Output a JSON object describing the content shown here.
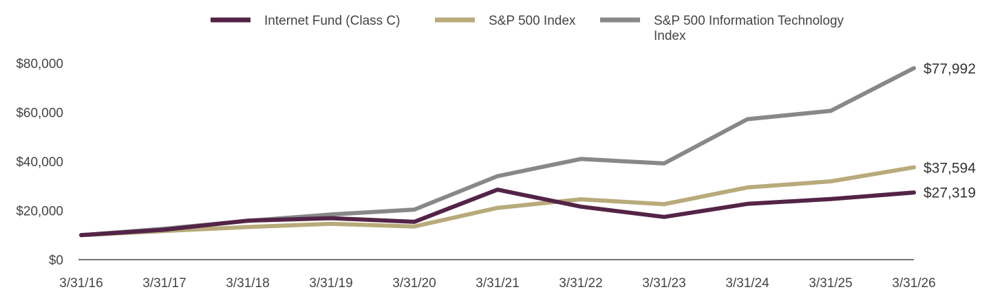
{
  "chart_data": {
    "type": "line",
    "title": "",
    "xlabel": "",
    "ylabel": "",
    "categories": [
      "3/31/16",
      "3/31/17",
      "3/31/18",
      "3/31/19",
      "3/31/20",
      "3/31/21",
      "3/31/22",
      "3/31/23",
      "3/31/24",
      "3/31/25",
      "3/31/26"
    ],
    "ylim": [
      0,
      80000
    ],
    "yticks": [
      0,
      20000,
      40000,
      60000,
      80000
    ],
    "ytick_labels": [
      "$0",
      "$20,000",
      "$40,000",
      "$60,000",
      "$80,000"
    ],
    "grid": false,
    "legend_position": "top",
    "series": [
      {
        "name": "Internet Fund (Class C)",
        "color": "#532447",
        "values": [
          10000,
          12200,
          15900,
          16900,
          15400,
          28500,
          21600,
          17400,
          22700,
          24700,
          27319
        ],
        "end_label": "$27,319"
      },
      {
        "name": "S&P 500 Index",
        "color": "#B8AA7A",
        "values": [
          10000,
          11700,
          13300,
          14600,
          13500,
          21100,
          24600,
          22600,
          29400,
          31900,
          37594
        ],
        "end_label": "$37,594"
      },
      {
        "name": "S&P 500 Information Technology Index",
        "legend_lines": [
          "S&P 500 Information Technology",
          "Index"
        ],
        "color": "#87888A",
        "values": [
          10000,
          12600,
          15800,
          18400,
          20400,
          34000,
          41000,
          39200,
          57200,
          60600,
          77992
        ],
        "end_label": "$77,992"
      }
    ]
  }
}
